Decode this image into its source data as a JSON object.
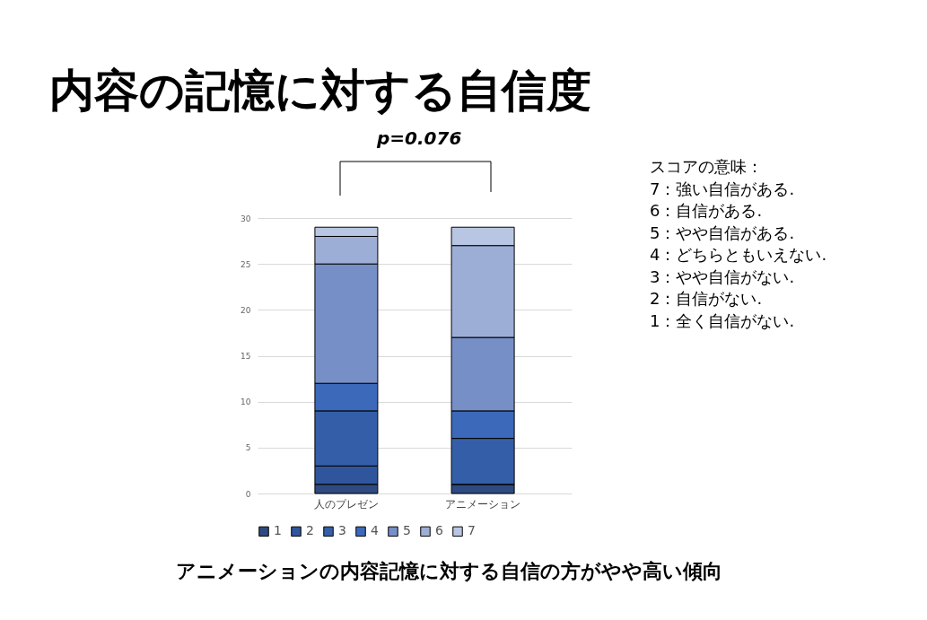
{
  "chart_data": {
    "type": "bar",
    "title": "内容の記憶に対する自信度",
    "stacked": true,
    "categories": [
      "人のプレゼン",
      "アニメーション"
    ],
    "series": [
      {
        "name": "1",
        "color": "#2e4a80",
        "values": [
          1,
          1
        ]
      },
      {
        "name": "2",
        "color": "#2f559c",
        "values": [
          2,
          0
        ]
      },
      {
        "name": "3",
        "color": "#345fa8",
        "values": [
          6,
          5
        ]
      },
      {
        "name": "4",
        "color": "#3c69ba",
        "values": [
          3,
          3
        ]
      },
      {
        "name": "5",
        "color": "#778fc7",
        "values": [
          13,
          8
        ]
      },
      {
        "name": "6",
        "color": "#9daed6",
        "values": [
          3,
          10
        ]
      },
      {
        "name": "7",
        "color": "#b9c6e3",
        "values": [
          1,
          2
        ]
      }
    ],
    "ylim": [
      0,
      30
    ],
    "yticks": [
      0,
      5,
      10,
      15,
      20,
      25,
      30
    ],
    "grid": "y",
    "legend": "bottom",
    "annotations": [
      "p=0.076",
      "スコアの意味：",
      "7：強い自信がある.",
      "6：自信がある.",
      "5：やや自信がある.",
      "4：どちらともいえない.",
      "3：やや自信がない.",
      "2：自信がない.",
      "1：全く自信がない.",
      "アニメーションの内容記憶に対する自信の方がやや高い傾向"
    ]
  }
}
